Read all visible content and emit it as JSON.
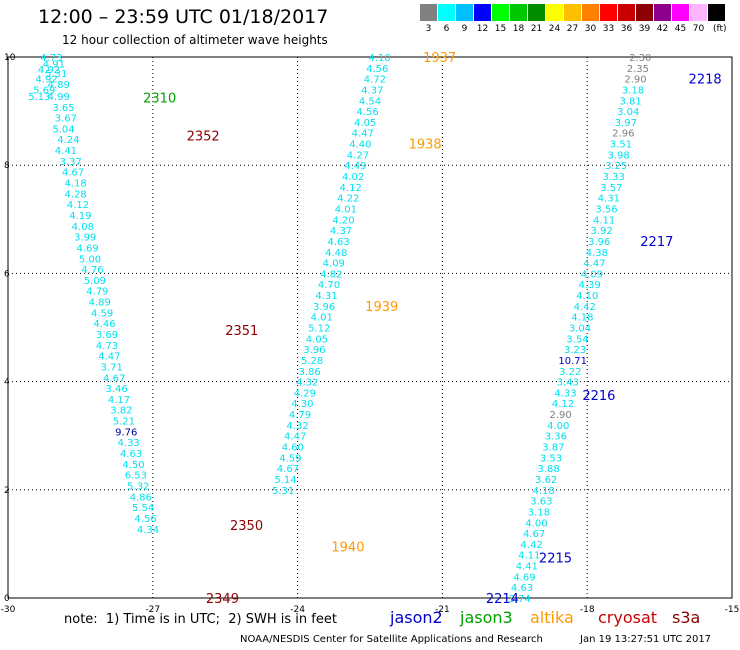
{
  "header": {
    "title": "12:00 – 23:59 UTC 01/18/2017",
    "subtitle": "12 hour collection of altimeter wave heights"
  },
  "color_scale": {
    "unit": "(ft)",
    "bins": [
      {
        "label": "3",
        "color": "#808080"
      },
      {
        "label": "6",
        "color": "#00ffff"
      },
      {
        "label": "9",
        "color": "#00bfff"
      },
      {
        "label": "12",
        "color": "#0000ff"
      },
      {
        "label": "15",
        "color": "#00ff00"
      },
      {
        "label": "18",
        "color": "#00c800"
      },
      {
        "label": "21",
        "color": "#008c00"
      },
      {
        "label": "24",
        "color": "#ffff00"
      },
      {
        "label": "27",
        "color": "#ffbf00"
      },
      {
        "label": "30",
        "color": "#ff8000"
      },
      {
        "label": "33",
        "color": "#ff0000"
      },
      {
        "label": "36",
        "color": "#c80000"
      },
      {
        "label": "39",
        "color": "#8c0000"
      },
      {
        "label": "42",
        "color": "#8c008c"
      },
      {
        "label": "45",
        "color": "#ff00ff"
      },
      {
        "label": "70",
        "color": "#ffb4ff"
      },
      {
        "label": "",
        "color": "#000000"
      }
    ]
  },
  "map": {
    "x_ticks": [
      "-30",
      "-27",
      "-24",
      "-21",
      "-18",
      "-15"
    ],
    "y_ticks": [
      "0",
      "2",
      "4",
      "6",
      "8",
      "10"
    ],
    "lon_range": [
      -30,
      -15
    ],
    "lat_range": [
      0,
      10
    ]
  },
  "tracks": [
    {
      "color": "#00e0f0",
      "points": [
        {
          "v": "4.73",
          "lon": -29.1,
          "lat": 10.0
        },
        {
          "v": "4.91",
          "lon": -29.05,
          "lat": 9.88
        },
        {
          "v": "4.92",
          "lon": -29.15,
          "lat": 9.78
        },
        {
          "v": "5.31",
          "lon": -29.0,
          "lat": 9.7
        },
        {
          "v": "4.92",
          "lon": -29.2,
          "lat": 9.6
        },
        {
          "v": "4.89",
          "lon": -28.95,
          "lat": 9.5
        },
        {
          "v": "5.69",
          "lon": -29.25,
          "lat": 9.4
        },
        {
          "v": "5.13",
          "lon": -29.35,
          "lat": 9.28
        },
        {
          "v": "4.99",
          "lon": -28.95,
          "lat": 9.28
        },
        {
          "v": "3.65",
          "lon": -28.85,
          "lat": 9.08
        },
        {
          "v": "3.67",
          "lon": -28.8,
          "lat": 8.88
        },
        {
          "v": "5.04",
          "lon": -28.85,
          "lat": 8.68
        },
        {
          "v": "4.24",
          "lon": -28.75,
          "lat": 8.48
        },
        {
          "v": "4.41",
          "lon": -28.8,
          "lat": 8.28
        },
        {
          "v": "3.37",
          "lon": -28.7,
          "lat": 8.08
        },
        {
          "v": "4.67",
          "lon": -28.65,
          "lat": 7.88
        },
        {
          "v": "4.18",
          "lon": -28.6,
          "lat": 7.68
        },
        {
          "v": "4.28",
          "lon": -28.6,
          "lat": 7.48
        },
        {
          "v": "4.12",
          "lon": -28.55,
          "lat": 7.28
        },
        {
          "v": "4.19",
          "lon": -28.5,
          "lat": 7.08
        },
        {
          "v": "4.08",
          "lon": -28.45,
          "lat": 6.88
        },
        {
          "v": "3.99",
          "lon": -28.4,
          "lat": 6.68
        },
        {
          "v": "4.69",
          "lon": -28.35,
          "lat": 6.48
        },
        {
          "v": "5.00",
          "lon": -28.3,
          "lat": 6.28
        },
        {
          "v": "4.76",
          "lon": -28.25,
          "lat": 6.08
        },
        {
          "v": "5.09",
          "lon": -28.2,
          "lat": 5.88
        },
        {
          "v": "4.79",
          "lon": -28.15,
          "lat": 5.68
        },
        {
          "v": "4.89",
          "lon": -28.1,
          "lat": 5.48
        },
        {
          "v": "4.59",
          "lon": -28.05,
          "lat": 5.28
        },
        {
          "v": "4.46",
          "lon": -28.0,
          "lat": 5.08
        },
        {
          "v": "3.69",
          "lon": -27.95,
          "lat": 4.88
        },
        {
          "v": "4.73",
          "lon": -27.95,
          "lat": 4.68
        },
        {
          "v": "4.47",
          "lon": -27.9,
          "lat": 4.48
        },
        {
          "v": "3.71",
          "lon": -27.85,
          "lat": 4.28
        },
        {
          "v": "4.67",
          "lon": -27.8,
          "lat": 4.08
        },
        {
          "v": "3.46",
          "lon": -27.75,
          "lat": 3.88
        },
        {
          "v": "4.17",
          "lon": -27.7,
          "lat": 3.68
        },
        {
          "v": "3.82",
          "lon": -27.65,
          "lat": 3.48
        },
        {
          "v": "5.21",
          "lon": -27.6,
          "lat": 3.28
        },
        {
          "v": "9.76",
          "lon": -27.55,
          "lat": 3.08,
          "color": "#0000aa"
        },
        {
          "v": "4.33",
          "lon": -27.5,
          "lat": 2.88
        },
        {
          "v": "4.63",
          "lon": -27.45,
          "lat": 2.68
        },
        {
          "v": "4.50",
          "lon": -27.4,
          "lat": 2.48
        },
        {
          "v": "6.53",
          "lon": -27.35,
          "lat": 2.28
        },
        {
          "v": "5.32",
          "lon": -27.3,
          "lat": 2.08
        },
        {
          "v": "4.86",
          "lon": -27.25,
          "lat": 1.88
        },
        {
          "v": "5.54",
          "lon": -27.2,
          "lat": 1.68
        },
        {
          "v": "4.56",
          "lon": -27.15,
          "lat": 1.48
        },
        {
          "v": "4.34",
          "lon": -27.1,
          "lat": 1.28
        }
      ]
    },
    {
      "color": "#00e0f0",
      "points": [
        {
          "v": "4.10",
          "lon": -22.3,
          "lat": 10.0
        },
        {
          "v": "4.56",
          "lon": -22.35,
          "lat": 9.8
        },
        {
          "v": "4.72",
          "lon": -22.4,
          "lat": 9.6
        },
        {
          "v": "4.37",
          "lon": -22.45,
          "lat": 9.4
        },
        {
          "v": "4.54",
          "lon": -22.5,
          "lat": 9.2
        },
        {
          "v": "4.56",
          "lon": -22.55,
          "lat": 9.0
        },
        {
          "v": "4.05",
          "lon": -22.6,
          "lat": 8.8
        },
        {
          "v": "4.47",
          "lon": -22.65,
          "lat": 8.6
        },
        {
          "v": "4.40",
          "lon": -22.7,
          "lat": 8.4
        },
        {
          "v": "4.27",
          "lon": -22.75,
          "lat": 8.2
        },
        {
          "v": "4.49",
          "lon": -22.8,
          "lat": 8.0
        },
        {
          "v": "4.02",
          "lon": -22.85,
          "lat": 7.8
        },
        {
          "v": "4.12",
          "lon": -22.9,
          "lat": 7.6
        },
        {
          "v": "4.22",
          "lon": -22.95,
          "lat": 7.4
        },
        {
          "v": "4.01",
          "lon": -23.0,
          "lat": 7.2
        },
        {
          "v": "4.20",
          "lon": -23.05,
          "lat": 7.0
        },
        {
          "v": "4.37",
          "lon": -23.1,
          "lat": 6.8
        },
        {
          "v": "4.63",
          "lon": -23.15,
          "lat": 6.6
        },
        {
          "v": "4.48",
          "lon": -23.2,
          "lat": 6.4
        },
        {
          "v": "4.09",
          "lon": -23.25,
          "lat": 6.2
        },
        {
          "v": "4.82",
          "lon": -23.3,
          "lat": 6.0
        },
        {
          "v": "4.70",
          "lon": -23.35,
          "lat": 5.8
        },
        {
          "v": "4.31",
          "lon": -23.4,
          "lat": 5.6
        },
        {
          "v": "3.96",
          "lon": -23.45,
          "lat": 5.4
        },
        {
          "v": "4.01",
          "lon": -23.5,
          "lat": 5.2
        },
        {
          "v": "5.12",
          "lon": -23.55,
          "lat": 5.0
        },
        {
          "v": "4.05",
          "lon": -23.6,
          "lat": 4.8
        },
        {
          "v": "3.96",
          "lon": -23.65,
          "lat": 4.6
        },
        {
          "v": "5.28",
          "lon": -23.7,
          "lat": 4.4
        },
        {
          "v": "3.86",
          "lon": -23.75,
          "lat": 4.2
        },
        {
          "v": "4.32",
          "lon": -23.8,
          "lat": 4.0
        },
        {
          "v": "4.29",
          "lon": -23.85,
          "lat": 3.8
        },
        {
          "v": "4.30",
          "lon": -23.9,
          "lat": 3.6
        },
        {
          "v": "4.79",
          "lon": -23.95,
          "lat": 3.4
        },
        {
          "v": "4.32",
          "lon": -24.0,
          "lat": 3.2
        },
        {
          "v": "4.47",
          "lon": -24.05,
          "lat": 3.0
        },
        {
          "v": "4.60",
          "lon": -24.1,
          "lat": 2.8
        },
        {
          "v": "4.59",
          "lon": -24.15,
          "lat": 2.6
        },
        {
          "v": "4.67",
          "lon": -24.2,
          "lat": 2.4
        },
        {
          "v": "5.14",
          "lon": -24.25,
          "lat": 2.2
        },
        {
          "v": "5.31",
          "lon": -24.3,
          "lat": 2.0
        }
      ]
    },
    {
      "color": "#00e0f0",
      "points": [
        {
          "v": "2.30",
          "lon": -16.9,
          "lat": 10.0,
          "color": "#808080"
        },
        {
          "v": "2.35",
          "lon": -16.95,
          "lat": 9.8,
          "color": "#808080"
        },
        {
          "v": "2.90",
          "lon": -17.0,
          "lat": 9.6,
          "color": "#808080"
        },
        {
          "v": "3.18",
          "lon": -17.05,
          "lat": 9.4
        },
        {
          "v": "3.81",
          "lon": -17.1,
          "lat": 9.2
        },
        {
          "v": "3.04",
          "lon": -17.15,
          "lat": 9.0
        },
        {
          "v": "3.97",
          "lon": -17.2,
          "lat": 8.8
        },
        {
          "v": "2.96",
          "lon": -17.25,
          "lat": 8.6,
          "color": "#808080"
        },
        {
          "v": "3.51",
          "lon": -17.3,
          "lat": 8.4
        },
        {
          "v": "3.98",
          "lon": -17.35,
          "lat": 8.2
        },
        {
          "v": "3.25",
          "lon": -17.4,
          "lat": 8.0
        },
        {
          "v": "3.33",
          "lon": -17.45,
          "lat": 7.8
        },
        {
          "v": "3.57",
          "lon": -17.5,
          "lat": 7.6
        },
        {
          "v": "4.31",
          "lon": -17.55,
          "lat": 7.4
        },
        {
          "v": "3.56",
          "lon": -17.6,
          "lat": 7.2
        },
        {
          "v": "4.11",
          "lon": -17.65,
          "lat": 7.0
        },
        {
          "v": "3.92",
          "lon": -17.7,
          "lat": 6.8
        },
        {
          "v": "3.96",
          "lon": -17.75,
          "lat": 6.6
        },
        {
          "v": "4.38",
          "lon": -17.8,
          "lat": 6.4
        },
        {
          "v": "4.47",
          "lon": -17.85,
          "lat": 6.2
        },
        {
          "v": "4.09",
          "lon": -17.9,
          "lat": 6.0
        },
        {
          "v": "4.39",
          "lon": -17.95,
          "lat": 5.8
        },
        {
          "v": "4.10",
          "lon": -18.0,
          "lat": 5.6
        },
        {
          "v": "4.42",
          "lon": -18.05,
          "lat": 5.4
        },
        {
          "v": "4.18",
          "lon": -18.1,
          "lat": 5.2
        },
        {
          "v": "3.04",
          "lon": -18.15,
          "lat": 5.0
        },
        {
          "v": "3.54",
          "lon": -18.2,
          "lat": 4.8
        },
        {
          "v": "3.23",
          "lon": -18.25,
          "lat": 4.6
        },
        {
          "v": "10.71",
          "lon": -18.3,
          "lat": 4.4,
          "color": "#0000cc"
        },
        {
          "v": "3.22",
          "lon": -18.35,
          "lat": 4.2
        },
        {
          "v": "3.43",
          "lon": -18.4,
          "lat": 4.0
        },
        {
          "v": "4.33",
          "lon": -18.45,
          "lat": 3.8
        },
        {
          "v": "4.12",
          "lon": -18.5,
          "lat": 3.6
        },
        {
          "v": "2.90",
          "lon": -18.55,
          "lat": 3.4,
          "color": "#808080"
        },
        {
          "v": "4.00",
          "lon": -18.6,
          "lat": 3.2
        },
        {
          "v": "3.36",
          "lon": -18.65,
          "lat": 3.0
        },
        {
          "v": "3.87",
          "lon": -18.7,
          "lat": 2.8
        },
        {
          "v": "3.53",
          "lon": -18.75,
          "lat": 2.6
        },
        {
          "v": "3.88",
          "lon": -18.8,
          "lat": 2.4
        },
        {
          "v": "3.62",
          "lon": -18.85,
          "lat": 2.2
        },
        {
          "v": "4.18",
          "lon": -18.9,
          "lat": 2.0
        },
        {
          "v": "3.63",
          "lon": -18.95,
          "lat": 1.8
        },
        {
          "v": "3.18",
          "lon": -19.0,
          "lat": 1.6
        },
        {
          "v": "4.00",
          "lon": -19.05,
          "lat": 1.4
        },
        {
          "v": "4.67",
          "lon": -19.1,
          "lat": 1.2
        },
        {
          "v": "4.42",
          "lon": -19.15,
          "lat": 1.0
        },
        {
          "v": "4.11",
          "lon": -19.2,
          "lat": 0.8
        },
        {
          "v": "4.41",
          "lon": -19.25,
          "lat": 0.6
        },
        {
          "v": "4.69",
          "lon": -19.3,
          "lat": 0.4
        },
        {
          "v": "4.63",
          "lon": -19.35,
          "lat": 0.2
        },
        {
          "v": "3.74",
          "lon": -19.4,
          "lat": 0.0
        }
      ]
    }
  ],
  "pass_labels": [
    {
      "text": "2310",
      "lon": -27.2,
      "lat": 9.25,
      "color": "#00a000"
    },
    {
      "text": "2352",
      "lon": -26.3,
      "lat": 8.55,
      "color": "#8c0000"
    },
    {
      "text": "2351",
      "lon": -25.5,
      "lat": 4.95,
      "color": "#8c0000"
    },
    {
      "text": "2350",
      "lon": -25.4,
      "lat": 1.35,
      "color": "#8c0000"
    },
    {
      "text": "2349",
      "lon": -25.9,
      "lat": 0.0,
      "color": "#8c0000"
    },
    {
      "text": "1937",
      "lon": -21.4,
      "lat": 10.0,
      "color": "#ff9900"
    },
    {
      "text": "1938",
      "lon": -21.7,
      "lat": 8.4,
      "color": "#ff9900"
    },
    {
      "text": "1939",
      "lon": -22.6,
      "lat": 5.4,
      "color": "#ff9900"
    },
    {
      "text": "1940",
      "lon": -23.3,
      "lat": 0.95,
      "color": "#ff9900"
    },
    {
      "text": "2218",
      "lon": -15.9,
      "lat": 9.6,
      "color": "#0000cc"
    },
    {
      "text": "2217",
      "lon": -16.9,
      "lat": 6.6,
      "color": "#0000cc"
    },
    {
      "text": "2216",
      "lon": -18.1,
      "lat": 3.75,
      "color": "#0000cc"
    },
    {
      "text": "2215",
      "lon": -19.0,
      "lat": 0.75,
      "color": "#0000cc"
    },
    {
      "text": "2214",
      "lon": -20.1,
      "lat": 0.0,
      "color": "#0000cc"
    }
  ],
  "footer": {
    "note": "note:  1) Time is in UTC;  2) SWH is in feet",
    "legend": [
      {
        "label": "jason2",
        "color": "#0000cc"
      },
      {
        "label": "jason3",
        "color": "#00a000"
      },
      {
        "label": "altika",
        "color": "#ff9900"
      },
      {
        "label": "cryosat",
        "color": "#cc0000"
      },
      {
        "label": "s3a",
        "color": "#8c0000"
      }
    ],
    "credit": "NOAA/NESDIS Center for Satellite Applications and Research",
    "timestamp": "Jan 19 13:27:51 UTC 2017"
  }
}
